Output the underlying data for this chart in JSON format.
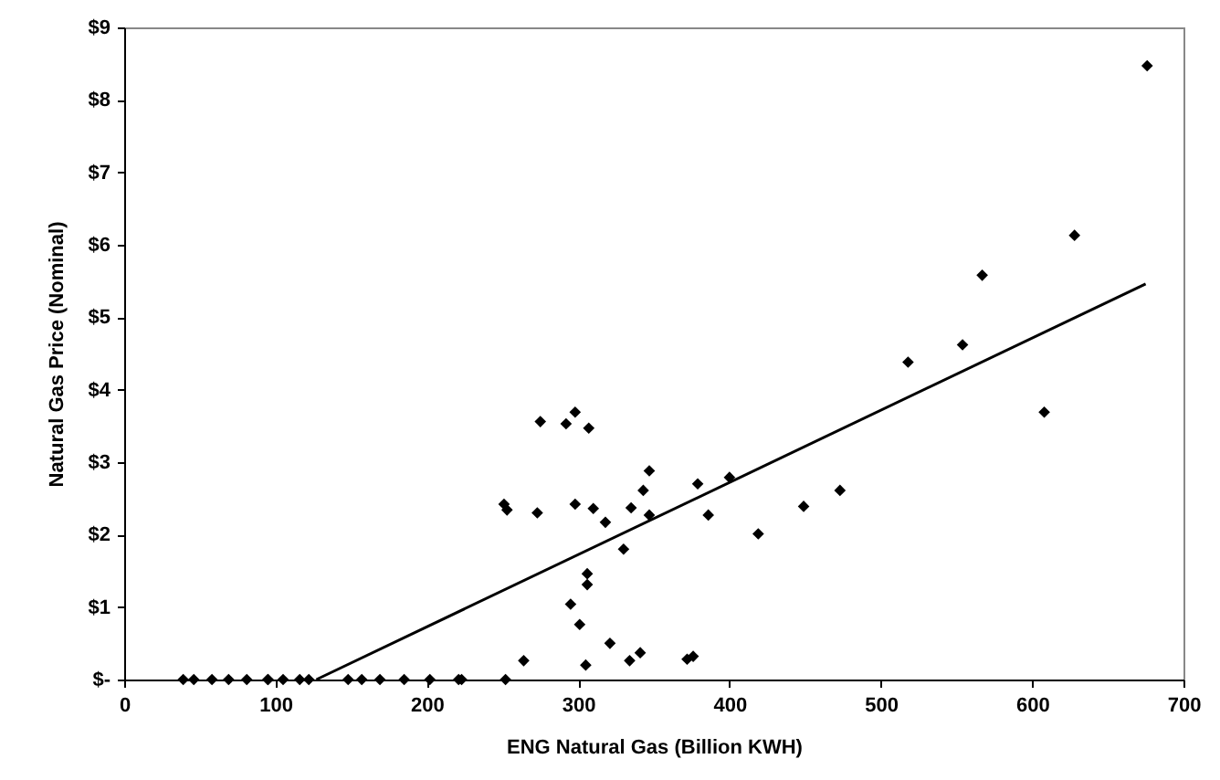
{
  "chart_data": {
    "type": "scatter",
    "xlabel": "ENG Natural Gas (Billion KWH)",
    "ylabel": "Natural Gas Price (Nominal)",
    "grid": false,
    "xlim": [
      0,
      700
    ],
    "xticks": [
      0,
      100,
      200,
      300,
      400,
      500,
      600,
      700
    ],
    "ylim": [
      0,
      9
    ],
    "yticks": [
      {
        "value": 0,
        "label": "$-"
      },
      {
        "value": 1,
        "label": "$1"
      },
      {
        "value": 2,
        "label": "$2"
      },
      {
        "value": 3,
        "label": "$3"
      },
      {
        "value": 4,
        "label": "$4"
      },
      {
        "value": 5,
        "label": "$5"
      },
      {
        "value": 6,
        "label": "$6"
      },
      {
        "value": 7,
        "label": "$7"
      },
      {
        "value": 8,
        "label": "$8"
      },
      {
        "value": 9,
        "label": "$9"
      }
    ],
    "series": [
      {
        "marker": "diamond",
        "color": "#000000",
        "x": [
          39,
          46,
          58,
          69,
          81,
          95,
          95,
          105,
          116,
          122,
          148,
          157,
          169,
          185,
          202,
          221,
          223,
          252,
          264,
          251,
          253,
          275,
          273,
          292,
          298,
          307,
          298,
          310,
          318,
          295,
          301,
          306,
          306,
          305,
          321,
          330,
          334,
          335,
          341,
          343,
          347,
          347,
          372,
          376,
          379,
          386,
          400,
          419,
          449,
          473,
          518,
          554,
          567,
          608,
          628,
          676
        ],
        "values": [
          0,
          0,
          0,
          0,
          0,
          0,
          0,
          0,
          0,
          0,
          0,
          0,
          0,
          0,
          0,
          0,
          0,
          0,
          0.26,
          2.42,
          2.34,
          3.56,
          2.3,
          3.53,
          3.69,
          3.47,
          2.42,
          2.36,
          2.17,
          1.04,
          0.76,
          1.46,
          1.31,
          0.2,
          0.5,
          1.8,
          0.26,
          2.37,
          0.37,
          2.61,
          2.88,
          2.27,
          0.28,
          0.32,
          2.7,
          2.27,
          2.79,
          2.01,
          2.39,
          2.61,
          4.38,
          4.62,
          5.58,
          3.69,
          6.13,
          8.47
        ]
      },
      {
        "type": "line",
        "color": "#000000",
        "x": [
          127,
          675
        ],
        "values": [
          0,
          5.46
        ]
      }
    ]
  }
}
